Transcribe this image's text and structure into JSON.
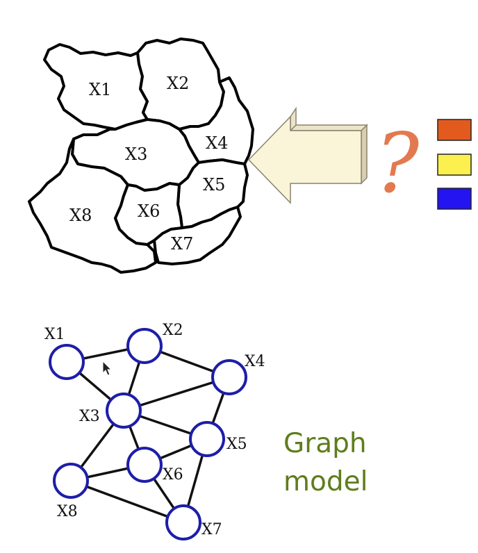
{
  "map": {
    "regions": [
      {
        "id": "x1",
        "label": "X1"
      },
      {
        "id": "x2",
        "label": "X2"
      },
      {
        "id": "x3",
        "label": "X3"
      },
      {
        "id": "x4",
        "label": "X4"
      },
      {
        "id": "x5",
        "label": "X5"
      },
      {
        "id": "x6",
        "label": "X6"
      },
      {
        "id": "x7",
        "label": "X7"
      },
      {
        "id": "x8",
        "label": "X8"
      }
    ]
  },
  "question_mark": "?",
  "palette": {
    "colors": [
      "#e35a1f",
      "#fbf04d",
      "#2414f2"
    ],
    "arrow_fill": "#faf4d8"
  },
  "graph": {
    "caption_line1": "Graph",
    "caption_line2": "model",
    "node_stroke": "#1e1ea8",
    "nodes": [
      {
        "id": "x1",
        "label": "X1"
      },
      {
        "id": "x2",
        "label": "X2"
      },
      {
        "id": "x3",
        "label": "X3"
      },
      {
        "id": "x4",
        "label": "X4"
      },
      {
        "id": "x5",
        "label": "X5"
      },
      {
        "id": "x6",
        "label": "X6"
      },
      {
        "id": "x7",
        "label": "X7"
      },
      {
        "id": "x8",
        "label": "X8"
      }
    ],
    "edges": [
      [
        "x1",
        "x2"
      ],
      [
        "x1",
        "x3"
      ],
      [
        "x2",
        "x3"
      ],
      [
        "x2",
        "x4"
      ],
      [
        "x3",
        "x4"
      ],
      [
        "x3",
        "x5"
      ],
      [
        "x3",
        "x6"
      ],
      [
        "x3",
        "x8"
      ],
      [
        "x4",
        "x5"
      ],
      [
        "x5",
        "x6"
      ],
      [
        "x5",
        "x7"
      ],
      [
        "x6",
        "x7"
      ],
      [
        "x6",
        "x8"
      ],
      [
        "x8",
        "x7"
      ]
    ]
  }
}
